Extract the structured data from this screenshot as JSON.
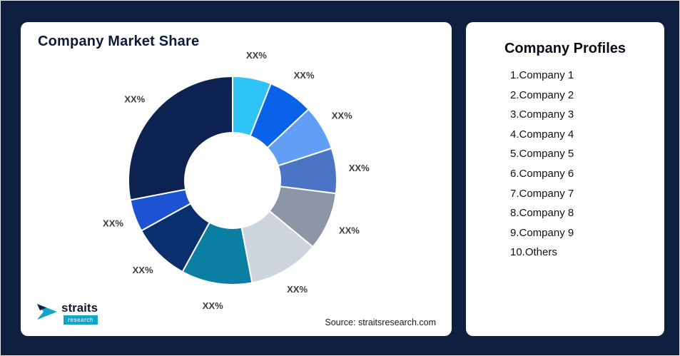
{
  "window": {
    "background": "#0F1F40",
    "source_note": "Source: straitsresearch.com"
  },
  "market_share_card": {
    "title": "Company Market Share"
  },
  "logo": {
    "brand": "straits",
    "tagline": "research"
  },
  "profiles_card": {
    "title": "Company Profiles",
    "items": [
      "1.Company 1",
      "2.Company 2",
      "3.Company 3",
      "4.Company 4",
      "5.Company 5",
      "6.Company 6",
      "7.Company 7",
      "8.Company 8",
      "9.Company 9",
      "10.Others"
    ]
  },
  "chart_data": {
    "type": "pie",
    "variant": "donut",
    "title": "Company Market Share",
    "note": "All slice values are shown as XX% placeholders in the image; approx_percent is estimated from arc angles",
    "start_angle_deg": 0,
    "direction": "clockwise",
    "label_color": "#3C3C3C",
    "slice_gap_color": "#FFFFFF",
    "segments": [
      {
        "label": "XX%",
        "approx_percent": 6,
        "color": "#2EC4F5"
      },
      {
        "label": "XX%",
        "approx_percent": 7,
        "color": "#0A62E8"
      },
      {
        "label": "XX%",
        "approx_percent": 7,
        "color": "#619EF5"
      },
      {
        "label": "XX%",
        "approx_percent": 7,
        "color": "#4C74C4"
      },
      {
        "label": "XX%",
        "approx_percent": 9,
        "color": "#8C96A6"
      },
      {
        "label": "XX%",
        "approx_percent": 11,
        "color": "#CED4DB"
      },
      {
        "label": "XX%",
        "approx_percent": 11,
        "color": "#0B7EA4"
      },
      {
        "label": "XX%",
        "approx_percent": 9,
        "color": "#0A2F6F"
      },
      {
        "label": "XX%",
        "approx_percent": 5,
        "color": "#1C53D2"
      },
      {
        "label": "XX%",
        "approx_percent": 28,
        "color": "#0D2250"
      }
    ]
  }
}
